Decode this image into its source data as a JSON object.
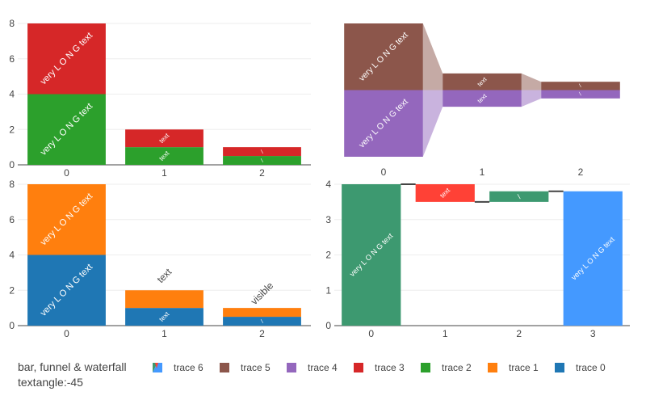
{
  "title_lines": [
    "bar, funnel & waterfall",
    "textangle:-45"
  ],
  "legend": [
    {
      "name": "trace 6",
      "color": "#4499ff",
      "color2": "#3d9970",
      "color3": "#ff4136"
    },
    {
      "name": "trace 5",
      "color": "#8c564b"
    },
    {
      "name": "trace 4",
      "color": "#9467bd"
    },
    {
      "name": "trace 3",
      "color": "#d62728"
    },
    {
      "name": "trace 2",
      "color": "#2ca02c"
    },
    {
      "name": "trace 1",
      "color": "#ff7f0e"
    },
    {
      "name": "trace 0",
      "color": "#1f77b4"
    }
  ],
  "chart_data": [
    {
      "type": "bar",
      "subplot": "top-left",
      "categories": [
        "0",
        "1",
        "2"
      ],
      "ylim": [
        0,
        8
      ],
      "yticks": [
        "0",
        "2",
        "4",
        "6",
        "8"
      ],
      "series": [
        {
          "name": "trace 2",
          "color": "#2ca02c",
          "values": [
            4,
            1,
            0.5
          ],
          "text": [
            "very L O N G text",
            "text",
            "/"
          ]
        },
        {
          "name": "trace 3",
          "color": "#d62728",
          "values": [
            4,
            1,
            0.5
          ],
          "text": [
            "very L O N G text",
            "text",
            "/"
          ]
        }
      ]
    },
    {
      "type": "funnel",
      "subplot": "top-right",
      "categories": [
        "0",
        "1",
        "2"
      ],
      "series": [
        {
          "name": "trace 4",
          "color": "#9467bd",
          "values": [
            4,
            1,
            0.5
          ],
          "text": [
            "very L O N G text",
            "text",
            "/"
          ]
        },
        {
          "name": "trace 5",
          "color": "#8c564b",
          "values": [
            4,
            1,
            0.5
          ],
          "text": [
            "very L O N G text",
            "text",
            "/"
          ]
        }
      ]
    },
    {
      "type": "bar",
      "subplot": "bottom-left",
      "categories": [
        "0",
        "1",
        "2"
      ],
      "ylim": [
        0,
        8
      ],
      "yticks": [
        "0",
        "2",
        "4",
        "6",
        "8"
      ],
      "series": [
        {
          "name": "trace 0",
          "color": "#1f77b4",
          "values": [
            4,
            1,
            0.5
          ],
          "text": [
            "very L O N G text",
            "text",
            "/"
          ]
        },
        {
          "name": "trace 1",
          "color": "#ff7f0e",
          "values": [
            4,
            1,
            0.5
          ],
          "text": [
            "very L O N G text",
            "text",
            "visible"
          ]
        }
      ]
    },
    {
      "type": "waterfall",
      "subplot": "bottom-right",
      "name": "trace 6",
      "categories": [
        "0",
        "1",
        "2",
        "3"
      ],
      "ylim": [
        0,
        4
      ],
      "yticks": [
        "0",
        "1",
        "2",
        "3",
        "4"
      ],
      "values": [
        4,
        -0.5,
        0.3,
        3.8
      ],
      "measure": [
        "relative",
        "relative",
        "relative",
        "total"
      ],
      "text": [
        "very L O N G text",
        "text",
        "/",
        "very L O N G text"
      ],
      "colors": {
        "increasing": "#3d9970",
        "decreasing": "#ff4136",
        "total": "#4499ff"
      }
    }
  ]
}
